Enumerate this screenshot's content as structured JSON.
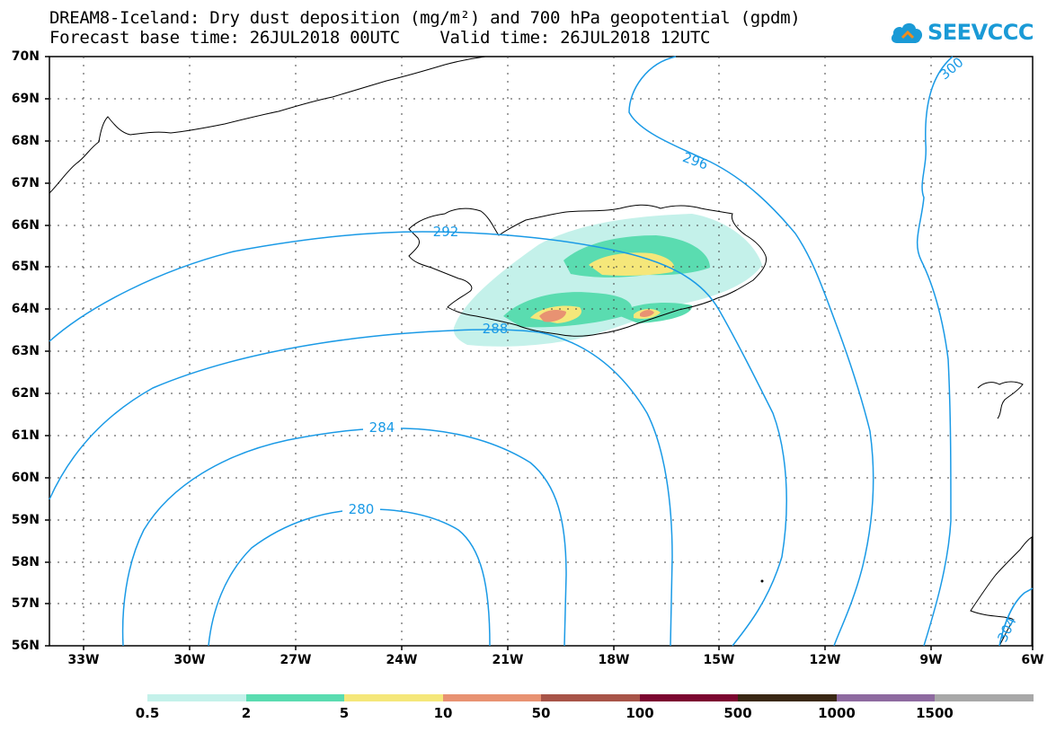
{
  "title_line1": "DREAM8-Iceland: Dry dust deposition (mg/m²) and 700 hPa geopotential (gpdm)",
  "title_line2": "Forecast base time: 26JUL2018 00UTC    Valid time: 26JUL2018 12UTC",
  "logo_text": "SEEVCCC",
  "lat_labels": [
    "70N",
    "69N",
    "68N",
    "67N",
    "66N",
    "65N",
    "64N",
    "63N",
    "62N",
    "61N",
    "60N",
    "59N",
    "58N",
    "57N",
    "56N"
  ],
  "lon_labels": [
    "33W",
    "30W",
    "27W",
    "24W",
    "21W",
    "18W",
    "15W",
    "12W",
    "9W",
    "6W"
  ],
  "contours": [
    {
      "label": "280"
    },
    {
      "label": "284"
    },
    {
      "label": "288"
    },
    {
      "label": "292"
    },
    {
      "label": "296"
    },
    {
      "label": "300"
    },
    {
      "label": "304"
    }
  ],
  "legend": {
    "labels": [
      "0.5",
      "2",
      "5",
      "10",
      "50",
      "100",
      "500",
      "1000",
      "1500"
    ],
    "colors": [
      "#c4f1ea",
      "#5adcb0",
      "#f5e77a",
      "#e89272",
      "#a85448",
      "#7c0630",
      "#3a2814",
      "#8e6aa0",
      "#a8a8a8"
    ]
  },
  "colors": {
    "contour": "#1a9ae6",
    "coast": "#000000",
    "grid": "#444444"
  }
}
